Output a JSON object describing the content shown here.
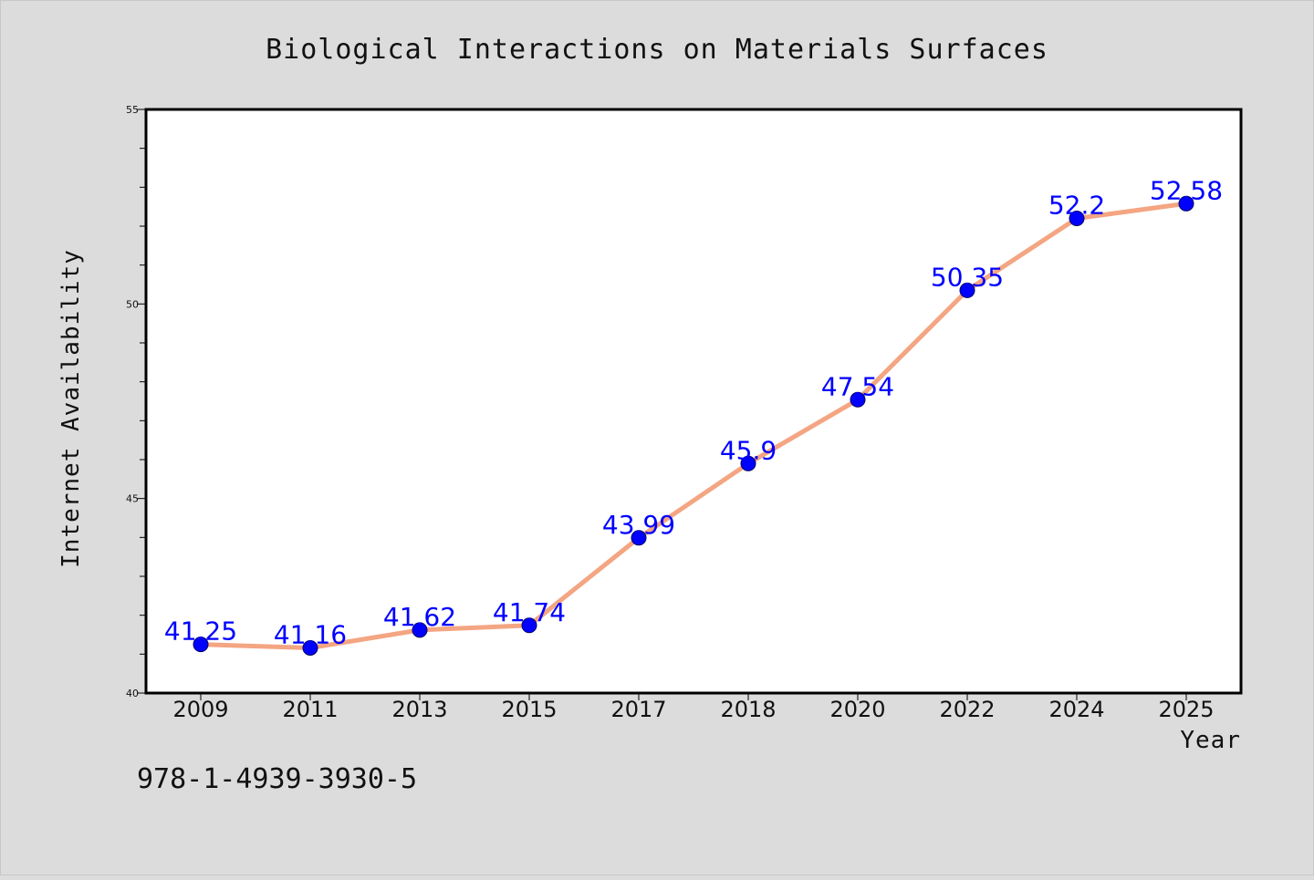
{
  "chart_data": {
    "type": "line",
    "title": "Biological Interactions on Materials Surfaces",
    "xlabel": "Year",
    "ylabel": "Internet Availability",
    "categories": [
      "2009",
      "2011",
      "2013",
      "2015",
      "2017",
      "2018",
      "2020",
      "2022",
      "2024",
      "2025"
    ],
    "series": [
      {
        "values": [
          41.25,
          41.16,
          41.62,
          41.74,
          43.99,
          45.9,
          47.54,
          50.35,
          52.2,
          52.58
        ],
        "data_labels": [
          "41.25",
          "41.16",
          "41.62",
          "41.74",
          "43.99",
          "45.9",
          "47.54",
          "50.35",
          "52.2",
          "52.58"
        ],
        "line_color": "#f4a582",
        "marker_color": "#0000ff"
      }
    ],
    "ylim": [
      40,
      55
    ],
    "yticks": [
      "40",
      "45",
      "50",
      "55"
    ],
    "grid": false,
    "legend": "none"
  },
  "footer": {
    "isbn": "978-1-4939-3930-5"
  },
  "colors": {
    "background": "#dcdcdc",
    "plot_area": "#ffffff",
    "line": "#f4a582",
    "marker": "#0000ff",
    "data_label": "#0000ff"
  }
}
